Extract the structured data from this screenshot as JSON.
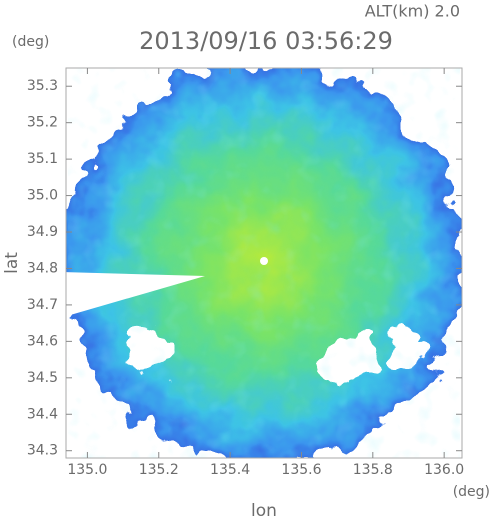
{
  "chart_data": {
    "type": "radar-image",
    "title": "2013/09/16 03:56:29",
    "subtitle": "ALT(km) 2.0",
    "x_label": "lon",
    "y_label": "lat",
    "x_unit": "(deg)",
    "y_unit": "(deg)",
    "xlim": [
      134.94,
      136.05
    ],
    "ylim": [
      34.28,
      35.35
    ],
    "xticks": [
      {
        "value": 135,
        "label": "135.0"
      },
      135.2,
      135.4,
      135.6,
      135.8,
      {
        "value": 136,
        "label": "136.0"
      }
    ],
    "yticks": [
      34.3,
      34.4,
      34.5,
      34.6,
      34.7,
      34.8,
      34.9,
      {
        "value": 35,
        "label": "35.0"
      },
      35.1,
      35.2,
      35.3
    ]
  }
}
